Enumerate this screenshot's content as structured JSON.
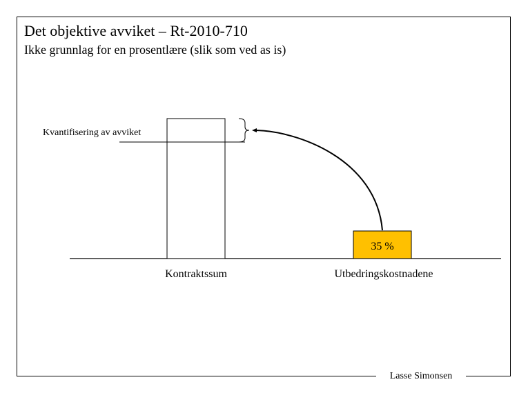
{
  "slide": {
    "title": "Det objektive avviket – Rt-2010-710",
    "subtitle": "Ikke grunnlag for en prosentlære (slik som ved as is)",
    "author": "Lasse Simonsen"
  },
  "diagram": {
    "quantification_label": "Kvantifisering av avviket",
    "bar_left_label": "Kontraktssum",
    "bar_right_label": "Utbedringskostnadene",
    "bar_right_value": "35 %",
    "bar_right_color": "#FFC000"
  }
}
